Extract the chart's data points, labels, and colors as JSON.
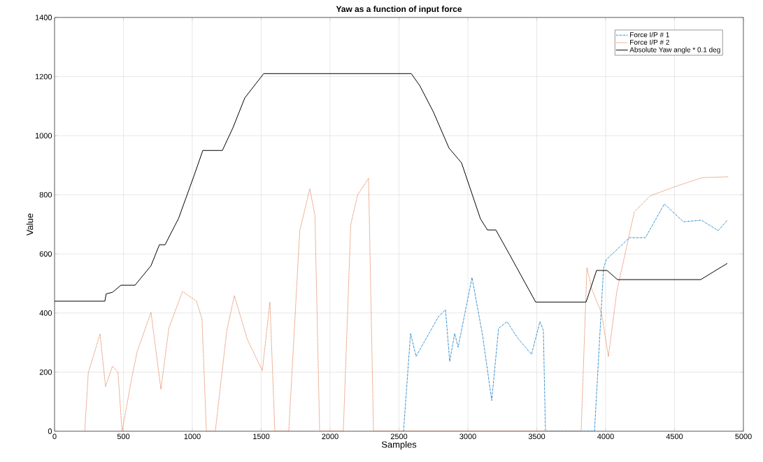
{
  "chart_data": {
    "type": "line",
    "title": "Yaw as a function of input force",
    "xlabel": "Samples",
    "ylabel": "Value",
    "xlim": [
      0,
      5000
    ],
    "ylim": [
      0,
      1400
    ],
    "xticks": [
      0,
      500,
      1000,
      1500,
      2000,
      2500,
      3000,
      3500,
      4000,
      4500,
      5000
    ],
    "yticks": [
      0,
      200,
      400,
      600,
      800,
      1000,
      1200,
      1400
    ],
    "grid": true,
    "legend": "top right",
    "series": [
      {
        "name": "Force I/P # 1",
        "color": "#0072bd",
        "line_style": "dashdot",
        "x": [
          2533,
          2584,
          2624,
          2787,
          2838,
          2868,
          2904,
          2929,
          3030,
          3107,
          3173,
          3223,
          3284,
          3360,
          3462,
          3523,
          3548,
          3563,
          3919,
          3985,
          4005,
          4173,
          4289,
          4426,
          4563,
          4695,
          4817,
          4883
        ],
        "values": [
          0,
          331,
          253,
          388,
          411,
          236,
          331,
          284,
          520,
          324,
          104,
          348,
          371,
          316,
          260,
          371,
          341,
          0,
          0,
          553,
          581,
          655,
          655,
          769,
          709,
          714,
          679,
          714
        ]
      },
      {
        "name": "Force I/P # 2",
        "color": "#d95319",
        "line_style": "dotted",
        "x": [
          219,
          245,
          330,
          370,
          420,
          460,
          490,
          510,
          560,
          600,
          700,
          772,
          830,
          929,
          1030,
          1070,
          1102,
          1167,
          1250,
          1305,
          1400,
          1508,
          1563,
          1599,
          1700,
          1780,
          1853,
          1890,
          1924,
          2096,
          2150,
          2200,
          2279,
          2315,
          3822,
          3864,
          3900,
          3970,
          4020,
          4081,
          4208,
          4325,
          4512,
          4700,
          4890
        ],
        "values": [
          0,
          198,
          329,
          151,
          220,
          200,
          0,
          50,
          180,
          270,
          402,
          142,
          350,
          473,
          440,
          380,
          0,
          0,
          340,
          459,
          310,
          205,
          437,
          0,
          0,
          680,
          820,
          730,
          0,
          0,
          700,
          800,
          856,
          0,
          0,
          553,
          480,
          400,
          253,
          473,
          742,
          797,
          829,
          858,
          861
        ]
      },
      {
        "name": "Absolute Yaw angle * 0.1 deg",
        "color": "#000000",
        "line_style": "solid",
        "x": [
          0,
          365,
          375,
          420,
          482,
          584,
          700,
          761,
          802,
          900,
          1015,
          1076,
          1218,
          1294,
          1381,
          1518,
          2589,
          2650,
          2750,
          2863,
          2954,
          3091,
          3142,
          3203,
          3300,
          3492,
          3858,
          3934,
          4010,
          4086,
          4690,
          4883
        ],
        "values": [
          440,
          440,
          465,
          470,
          494,
          494,
          560,
          631,
          631,
          720,
          868,
          950,
          950,
          1026,
          1128,
          1210,
          1210,
          1170,
          1080,
          958,
          908,
          719,
          681,
          681,
          600,
          437,
          437,
          544,
          544,
          513,
          513,
          568
        ]
      }
    ]
  }
}
